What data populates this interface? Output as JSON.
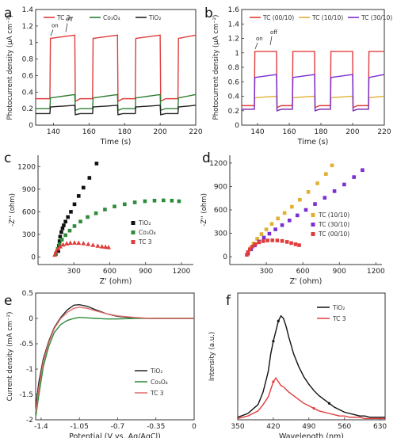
{
  "chart_data": [
    {
      "panel": "a",
      "type": "line",
      "xlabel": "Time (s)",
      "ylabel": "Photocurrent density (μA cm⁻²)",
      "xlim": [
        130,
        220
      ],
      "ylim": [
        0,
        1.4
      ],
      "xticks": [
        140,
        160,
        180,
        200,
        220
      ],
      "yticks": [
        0.0,
        0.2,
        0.4,
        0.6,
        0.8,
        1.0,
        1.2,
        1.4
      ],
      "legend": "top",
      "annotations": [
        "on",
        "off"
      ],
      "on_off_periods": [
        [
          138,
          152
        ],
        [
          162,
          176
        ],
        [
          186,
          200
        ],
        [
          210,
          222
        ]
      ],
      "series": [
        {
          "name": "TC 3",
          "color": "#e03c3c",
          "dark": 0.32,
          "light_peak": 1.05,
          "light_end": 1.09
        },
        {
          "name": "Co₃O₄",
          "color": "#2e7d32",
          "dark": 0.2,
          "light_peak": 0.33,
          "light_end": 0.37
        },
        {
          "name": "TiO₂",
          "color": "#222222",
          "dark": 0.14,
          "light_peak": 0.22,
          "light_end": 0.24
        }
      ]
    },
    {
      "panel": "b",
      "type": "line",
      "xlabel": "Time (s)",
      "ylabel": "Photocurrent density (μA cm⁻²)",
      "xlim": [
        130,
        220
      ],
      "ylim": [
        0,
        1.6
      ],
      "xticks": [
        140,
        160,
        180,
        200,
        220
      ],
      "yticks": [
        0.0,
        0.2,
        0.4,
        0.6,
        0.8,
        1.0,
        1.2,
        1.4,
        1.6
      ],
      "legend": "top",
      "annotations": [
        "on",
        "off"
      ],
      "on_off_periods": [
        [
          138,
          152
        ],
        [
          162,
          176
        ],
        [
          186,
          200
        ],
        [
          210,
          222
        ]
      ],
      "series": [
        {
          "name": "TC (00/10)",
          "color": "#e03c3c",
          "dark": 0.27,
          "light_peak": 1.02,
          "light_end": 1.02
        },
        {
          "name": "TC (10/10)",
          "color": "#e0b030",
          "dark": 0.22,
          "light_peak": 0.38,
          "light_end": 0.4
        },
        {
          "name": "TC (30/10)",
          "color": "#7b2fd1",
          "dark": 0.22,
          "light_peak": 0.66,
          "light_end": 0.7
        }
      ]
    },
    {
      "panel": "c",
      "type": "scatter",
      "xlabel": "Z' (ohm)",
      "ylabel": "-Z'' (ohm)",
      "xlim": [
        0,
        1300
      ],
      "ylim": [
        -100,
        1350
      ],
      "xticks": [
        300,
        600,
        900,
        1200
      ],
      "yticks": [
        0,
        300,
        600,
        900,
        1200
      ],
      "legend": "right",
      "series": [
        {
          "name": "TiO₂",
          "color": "#111111",
          "marker": "square",
          "x": [
            170,
            175,
            180,
            185,
            195,
            205,
            215,
            230,
            250,
            275,
            305,
            340,
            380,
            430,
            490
          ],
          "y": [
            80,
            150,
            210,
            270,
            330,
            380,
            420,
            470,
            530,
            600,
            700,
            810,
            920,
            1050,
            1240
          ]
        },
        {
          "name": "Co₃O₄",
          "color": "#2e8b3a",
          "marker": "square",
          "x": [
            150,
            165,
            180,
            200,
            230,
            265,
            305,
            355,
            415,
            485,
            560,
            640,
            725,
            810,
            895,
            975,
            1050,
            1120,
            1180
          ],
          "y": [
            40,
            110,
            170,
            230,
            290,
            350,
            410,
            470,
            530,
            580,
            630,
            670,
            700,
            725,
            740,
            748,
            752,
            748,
            740
          ]
        },
        {
          "name": "TC 3",
          "color": "#e03c3c",
          "marker": "triangle",
          "x": [
            140,
            150,
            165,
            185,
            210,
            240,
            270,
            305,
            340,
            380,
            420,
            460,
            500,
            535,
            565,
            590
          ],
          "y": [
            30,
            75,
            110,
            140,
            165,
            180,
            188,
            190,
            188,
            182,
            172,
            160,
            150,
            140,
            135,
            130
          ]
        }
      ]
    },
    {
      "panel": "d",
      "type": "scatter",
      "xlabel": "Z' (ohm)",
      "ylabel": "-Z'' (ohm)",
      "xlim": [
        0,
        1250
      ],
      "ylim": [
        -100,
        1300
      ],
      "xticks": [
        300,
        600,
        900,
        1200
      ],
      "yticks": [
        0,
        300,
        600,
        900,
        1200
      ],
      "legend": "right",
      "series": [
        {
          "name": "TC (10/10)",
          "color": "#e0b030",
          "marker": "square",
          "x": [
            150,
            170,
            195,
            225,
            260,
            300,
            345,
            395,
            450,
            510,
            575,
            645,
            720,
            790,
            840
          ],
          "y": [
            50,
            110,
            170,
            230,
            290,
            350,
            420,
            490,
            560,
            640,
            730,
            830,
            940,
            1060,
            1170
          ]
        },
        {
          "name": "TC (30/10)",
          "color": "#7b2fd1",
          "marker": "square",
          "x": [
            150,
            175,
            205,
            240,
            280,
            325,
            375,
            430,
            490,
            555,
            625,
            700,
            780,
            860,
            940,
            1020,
            1090
          ],
          "y": [
            40,
            95,
            145,
            195,
            245,
            295,
            350,
            405,
            465,
            530,
            600,
            675,
            755,
            840,
            925,
            1020,
            1110
          ]
        },
        {
          "name": "TC (00/10)",
          "color": "#e03c3c",
          "marker": "square",
          "x": [
            140,
            150,
            165,
            185,
            210,
            240,
            275,
            310,
            350,
            390,
            430,
            470,
            505,
            540,
            570
          ],
          "y": [
            25,
            60,
            95,
            130,
            160,
            185,
            200,
            208,
            210,
            208,
            202,
            190,
            175,
            160,
            148
          ]
        }
      ]
    },
    {
      "panel": "e",
      "type": "line",
      "xlabel": "Potential (V vs. Ag/AgCl)",
      "ylabel": "Current density (mA cm⁻²)",
      "xlim": [
        -1.45,
        0.0
      ],
      "ylim": [
        -2.0,
        0.5
      ],
      "xticks": [
        -1.4,
        -1.05,
        -0.7,
        -0.35,
        0.0
      ],
      "yticks": [
        -2.0,
        -1.5,
        -1.0,
        -0.5,
        0.0,
        0.5
      ],
      "legend": "bottom-right",
      "series": [
        {
          "name": "TiO₂",
          "color": "#222222",
          "x": [
            -1.45,
            -1.42,
            -1.38,
            -1.33,
            -1.28,
            -1.22,
            -1.16,
            -1.1,
            -1.05,
            -0.98,
            -0.9,
            -0.8,
            -0.7,
            -0.55,
            -0.4,
            -0.2,
            0.0
          ],
          "y": [
            -1.75,
            -1.25,
            -0.8,
            -0.45,
            -0.18,
            0.02,
            0.17,
            0.26,
            0.27,
            0.24,
            0.17,
            0.09,
            0.04,
            0.01,
            0.0,
            0.0,
            0.0
          ]
        },
        {
          "name": "Co₃O₄",
          "color": "#2e8b3a",
          "x": [
            -1.45,
            -1.42,
            -1.38,
            -1.33,
            -1.28,
            -1.22,
            -1.16,
            -1.1,
            -1.05,
            -0.98,
            -0.9,
            -0.8,
            -0.7,
            -0.55,
            -0.4,
            -0.2,
            0.0
          ],
          "y": [
            -1.95,
            -1.5,
            -0.95,
            -0.55,
            -0.28,
            -0.12,
            -0.04,
            0.0,
            0.02,
            0.01,
            0.0,
            -0.01,
            -0.01,
            0.0,
            0.0,
            0.0,
            0.0
          ]
        },
        {
          "name": "TC 3",
          "color": "#e06a6a",
          "x": [
            -1.45,
            -1.42,
            -1.38,
            -1.33,
            -1.28,
            -1.22,
            -1.16,
            -1.1,
            -1.05,
            -0.98,
            -0.9,
            -0.8,
            -0.7,
            -0.55,
            -0.4,
            -0.2,
            0.0
          ],
          "y": [
            -1.85,
            -1.35,
            -0.85,
            -0.48,
            -0.2,
            0.0,
            0.12,
            0.2,
            0.22,
            0.2,
            0.15,
            0.09,
            0.05,
            0.02,
            0.0,
            0.0,
            0.0
          ]
        }
      ]
    },
    {
      "panel": "f",
      "type": "line",
      "xlabel": "Wavelength (nm)",
      "ylabel": "Intensity (a.u.)",
      "xlim": [
        350,
        640
      ],
      "ylim": [
        0,
        1.0
      ],
      "xticks": [
        350,
        420,
        490,
        560,
        630
      ],
      "yticks": [],
      "legend": "top-right",
      "series": [
        {
          "name": "TiO₂",
          "color": "#111111",
          "x": [
            350,
            370,
            390,
            400,
            410,
            415,
            420,
            425,
            430,
            435,
            440,
            445,
            450,
            460,
            470,
            480,
            490,
            500,
            510,
            520,
            530,
            540,
            550,
            560,
            570,
            580,
            590,
            600,
            610,
            620,
            630,
            640
          ],
          "y": [
            0.02,
            0.05,
            0.12,
            0.22,
            0.38,
            0.52,
            0.62,
            0.7,
            0.78,
            0.82,
            0.8,
            0.74,
            0.66,
            0.52,
            0.42,
            0.34,
            0.28,
            0.23,
            0.19,
            0.16,
            0.13,
            0.1,
            0.08,
            0.06,
            0.05,
            0.04,
            0.03,
            0.03,
            0.02,
            0.02,
            0.02,
            0.02
          ]
        },
        {
          "name": "TC 3",
          "color": "#e03c3c",
          "x": [
            350,
            370,
            390,
            400,
            410,
            415,
            420,
            425,
            430,
            435,
            440,
            445,
            450,
            460,
            470,
            480,
            490,
            500,
            510,
            520,
            530,
            540,
            550,
            560,
            570,
            580,
            590,
            600,
            610,
            620,
            630,
            640
          ],
          "y": [
            0.01,
            0.03,
            0.07,
            0.12,
            0.18,
            0.24,
            0.3,
            0.33,
            0.3,
            0.27,
            0.26,
            0.24,
            0.22,
            0.19,
            0.16,
            0.13,
            0.11,
            0.09,
            0.07,
            0.06,
            0.05,
            0.04,
            0.03,
            0.03,
            0.02,
            0.02,
            0.02,
            0.01,
            0.01,
            0.01,
            0.01,
            0.01
          ]
        }
      ]
    }
  ]
}
